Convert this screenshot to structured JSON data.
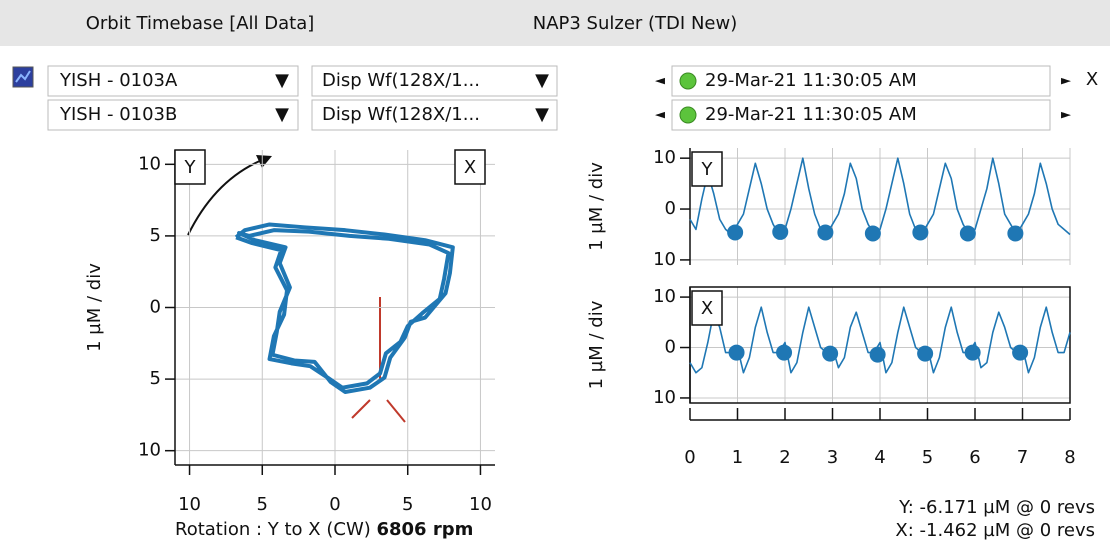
{
  "header": {
    "left": "Orbit Timebase [All Data]",
    "right": "NAP3 Sulzer (TDI New)"
  },
  "controls": {
    "probes": [
      "YISH - 0103A",
      "YISH - 0103B"
    ],
    "waveforms": [
      "Disp Wf(128X/1...",
      "Disp Wf(128X/1..."
    ],
    "timestamps": [
      "29-Mar-21  11:30:05 AM",
      "29-Mar-21  11:30:05 AM"
    ],
    "x_label": "X"
  },
  "chart_data": [
    {
      "type": "line",
      "ylabel": "1 µM / div",
      "box_labels": [
        "Y",
        "X"
      ],
      "grid": true,
      "xlim": [
        -11,
        11
      ],
      "ylim": [
        -11,
        11
      ],
      "xticks": [
        {
          "value": -10,
          "label": "10"
        },
        {
          "value": -5,
          "label": "5"
        },
        0,
        5,
        10
      ],
      "yticks": [
        {
          "value": -10,
          "label": "10"
        },
        {
          "value": -5,
          "label": "5"
        },
        0,
        5,
        10
      ],
      "series": [
        {
          "color": "#1f77b4",
          "x": [
            -6.8,
            -6.2,
            -4.5,
            -2.1,
            0.7,
            3.4,
            6.2,
            8.1,
            7.9,
            7.6,
            6.2,
            5.2,
            4.8,
            3.8,
            3.4,
            2.4,
            0.7,
            -0.3,
            -1.4,
            -2.8,
            -4.3,
            -4.0,
            -3.8,
            -3.1,
            -3.8,
            -3.4,
            -5.5,
            -6.6,
            -5.9,
            -4.2,
            -1.8,
            1.0,
            3.7,
            6.5,
            7.8,
            7.5,
            7.2,
            6.0,
            5.0,
            4.5,
            3.5,
            3.1,
            2.2,
            0.5,
            -0.5,
            -1.7,
            -3.0,
            -4.5,
            -4.2,
            -3.5,
            -3.3,
            -4.1,
            -3.7,
            -5.7,
            -6.8
          ],
          "values": [
            4.9,
            5.4,
            5.8,
            5.6,
            5.4,
            5.1,
            4.7,
            4.2,
            2.4,
            1.0,
            -0.7,
            -1.0,
            -2.1,
            -3.5,
            -4.9,
            -5.6,
            -5.9,
            -5.2,
            -3.8,
            -3.7,
            -3.3,
            -1.7,
            -0.3,
            1.4,
            3.1,
            4.2,
            4.7,
            5.2,
            5.0,
            5.4,
            5.3,
            5.0,
            4.8,
            4.4,
            3.8,
            2.0,
            0.6,
            -0.4,
            -1.3,
            -2.4,
            -3.2,
            -4.6,
            -5.3,
            -5.6,
            -4.9,
            -4.1,
            -3.9,
            -3.6,
            -2.0,
            -0.5,
            1.2,
            2.8,
            4.0,
            4.5,
            4.9
          ]
        }
      ]
    },
    {
      "type": "line",
      "ylabel": "1 µM / div",
      "box_labels": [
        "Y"
      ],
      "grid": true,
      "show_xticklabels": false,
      "xlim": [
        0,
        8
      ],
      "ylim": [
        -11,
        12
      ],
      "xticks": [
        0,
        1,
        2,
        3,
        4,
        5,
        6,
        7,
        8
      ],
      "yticks": [
        {
          "value": -10,
          "label": "10"
        },
        0,
        10
      ],
      "x": [
        0,
        0.125,
        0.25,
        0.375,
        0.5,
        0.625,
        0.75,
        0.875,
        1,
        1.125,
        1.25,
        1.375,
        1.5,
        1.625,
        1.75,
        1.875,
        2,
        2.125,
        2.25,
        2.375,
        2.5,
        2.625,
        2.75,
        2.875,
        3,
        3.125,
        3.25,
        3.375,
        3.5,
        3.625,
        3.75,
        3.875,
        4,
        4.125,
        4.25,
        4.375,
        4.5,
        4.625,
        4.75,
        4.875,
        5,
        5.125,
        5.25,
        5.375,
        5.5,
        5.625,
        5.75,
        5.875,
        6,
        6.125,
        6.25,
        6.375,
        6.5,
        6.625,
        6.75,
        6.875,
        7,
        7.125,
        7.25,
        7.375,
        7.5,
        7.625,
        7.75,
        7.875,
        8
      ],
      "series": [
        {
          "color": "#1f77b4",
          "values": [
            -2,
            -4,
            2,
            7,
            3,
            -2,
            -4,
            -5,
            -3,
            -1,
            4,
            9,
            5,
            0,
            -3,
            -5,
            -4,
            0,
            5,
            10,
            4,
            -1,
            -4,
            -5,
            -3,
            -1,
            3,
            9,
            6,
            0,
            -3,
            -5,
            -4,
            0,
            5,
            10,
            5,
            -1,
            -4,
            -5,
            -3,
            -1,
            4,
            9,
            6,
            0,
            -3,
            -5,
            -4,
            0,
            4,
            10,
            5,
            -1,
            -3,
            -5,
            -3,
            -1,
            3,
            9,
            5,
            0,
            -3,
            -4,
            -5
          ]
        },
        {
          "color": "#1f77b4",
          "marker": "dot",
          "x": [
            0.95,
            1.9,
            2.85,
            3.85,
            4.85,
            5.85,
            6.85
          ],
          "values": [
            -4.6,
            -4.5,
            -4.6,
            -4.8,
            -4.6,
            -4.8,
            -4.8
          ]
        }
      ]
    },
    {
      "type": "line",
      "ylabel": "1 µM / div",
      "box_labels": [
        "X"
      ],
      "grid": true,
      "xlim": [
        0,
        8
      ],
      "ylim": [
        -11,
        12
      ],
      "xticks": [
        0,
        1,
        2,
        3,
        4,
        5,
        6,
        7,
        8
      ],
      "yticks": [
        {
          "value": -10,
          "label": "10"
        },
        0,
        10
      ],
      "x": [
        0,
        0.125,
        0.25,
        0.375,
        0.5,
        0.625,
        0.75,
        0.875,
        1,
        1.125,
        1.25,
        1.375,
        1.5,
        1.625,
        1.75,
        1.875,
        2,
        2.125,
        2.25,
        2.375,
        2.5,
        2.625,
        2.75,
        2.875,
        3,
        3.125,
        3.25,
        3.375,
        3.5,
        3.625,
        3.75,
        3.875,
        4,
        4.125,
        4.25,
        4.375,
        4.5,
        4.625,
        4.75,
        4.875,
        5,
        5.125,
        5.25,
        5.375,
        5.5,
        5.625,
        5.75,
        5.875,
        6,
        6.125,
        6.25,
        6.375,
        6.5,
        6.625,
        6.75,
        6.875,
        7,
        7.125,
        7.25,
        7.375,
        7.5,
        7.625,
        7.75,
        7.875,
        8
      ],
      "series": [
        {
          "color": "#1f77b4",
          "values": [
            -3,
            -5,
            -4,
            1,
            7,
            4,
            -1,
            -1,
            0,
            -5,
            -2,
            4,
            8,
            3,
            -1,
            -1,
            1,
            -5,
            -3,
            3,
            8,
            4,
            0,
            -1,
            0,
            -4,
            -2,
            4,
            7,
            3,
            -1,
            -1,
            1,
            -5,
            -3,
            3,
            8,
            4,
            0,
            -1,
            0,
            -5,
            -2,
            4,
            8,
            3,
            -1,
            -1,
            1,
            -4,
            -3,
            3,
            7,
            4,
            0,
            -1,
            0,
            -5,
            -2,
            4,
            8,
            3,
            -1,
            -1,
            3
          ]
        },
        {
          "color": "#1f77b4",
          "marker": "dot",
          "x": [
            0.98,
            1.98,
            2.95,
            3.95,
            4.95,
            5.95,
            6.95
          ],
          "values": [
            -1,
            -1,
            -1.2,
            -1.4,
            -1.2,
            -1,
            -1
          ]
        }
      ]
    }
  ],
  "footer": {
    "rotation": "Rotation : Y to X (CW) ",
    "rpm": "6806 rpm",
    "readouts": [
      "Y: -6.171 µM @ 0 revs",
      "X: -1.462 µM @ 0 revs"
    ]
  }
}
